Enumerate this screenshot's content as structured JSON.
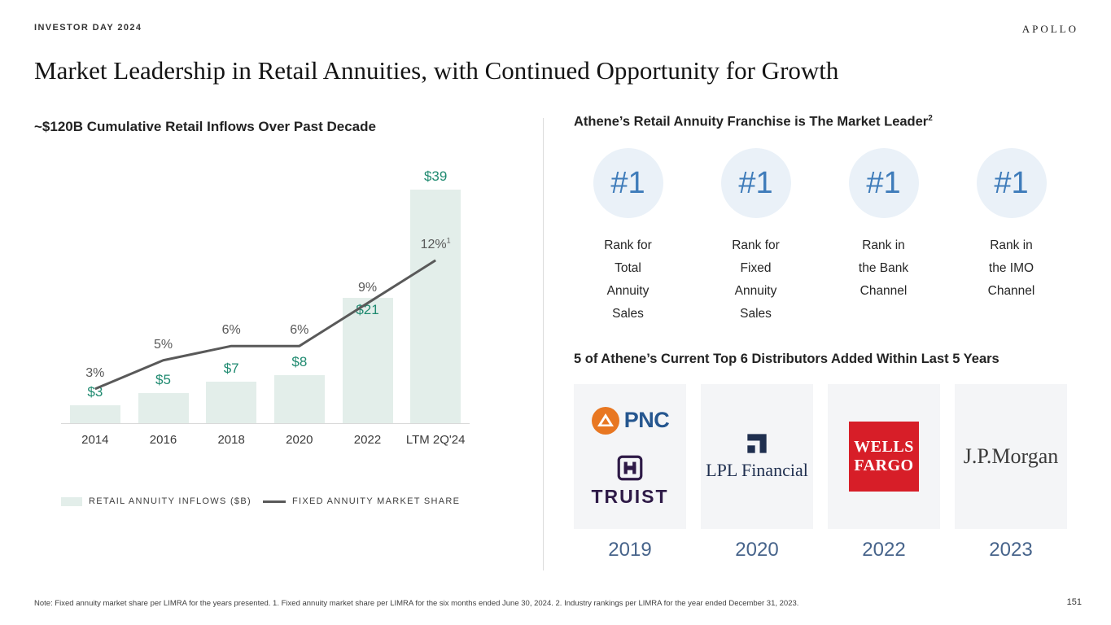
{
  "slide": {
    "eyebrow": "INVESTOR DAY 2024",
    "brand": "APOLLO",
    "title": "Market Leadership in Retail Annuities, with Continued Opportunity for Growth",
    "footnote": "Note: Fixed annuity market share per LIMRA for the years presented. 1. Fixed annuity market share per LIMRA for the six months ended June 30, 2024. 2. Industry rankings per LIMRA for the year ended December 31, 2023.",
    "page_number": "151"
  },
  "chart_data": {
    "type": "bar",
    "title": "~$120B Cumulative Retail Inflows Over Past Decade",
    "categories": [
      "2014",
      "2016",
      "2018",
      "2020",
      "2022",
      "LTM 2Q'24"
    ],
    "series": [
      {
        "name": "RETAIL ANNUITY INFLOWS ($B)",
        "type": "bar",
        "values": [
          3,
          5,
          7,
          8,
          21,
          39
        ],
        "labels": [
          "$3",
          "$5",
          "$7",
          "$8",
          "$21",
          "$39"
        ],
        "color": "#e3eeea",
        "label_color": "#1f8a70"
      },
      {
        "name": "FIXED ANNUITY MARKET SHARE",
        "type": "line",
        "values": [
          3,
          5,
          6,
          6,
          9,
          12
        ],
        "labels": [
          "3%",
          "5%",
          "6%",
          "6%",
          "9%",
          "12%"
        ],
        "last_label_superscript": "1",
        "color": "#595959",
        "label_color": "#595959"
      }
    ],
    "xlabel": "",
    "ylabel": "",
    "bar_axis_range": [
      0,
      40
    ],
    "line_axis_range": [
      0,
      13
    ],
    "gridlines": false,
    "legend_position": "bottom"
  },
  "leader_panel": {
    "heading": "Athene’s Retail Annuity Franchise is The Market Leader",
    "heading_superscript": "2",
    "badges": [
      {
        "rank": "#1",
        "label": "Rank for\nTotal\nAnnuity\nSales"
      },
      {
        "rank": "#1",
        "label": "Rank for\nFixed\nAnnuity\nSales"
      },
      {
        "rank": "#1",
        "label": "Rank in\nthe Bank\nChannel"
      },
      {
        "rank": "#1",
        "label": "Rank in\nthe IMO\nChannel"
      }
    ],
    "badge_colors": {
      "circle_fill": "#eaf1f8",
      "number": "#3f7cba"
    }
  },
  "distributors": {
    "heading": "5 of Athene’s Current Top 6 Distributors Added Within Last 5 Years",
    "tiles": [
      {
        "brands": [
          "PNC",
          "TRUIST"
        ],
        "year": "2019"
      },
      {
        "brands": [
          "LPL Financial"
        ],
        "year": "2020"
      },
      {
        "brands": [
          "WELLS FARGO"
        ],
        "year": "2022"
      },
      {
        "brands": [
          "J.P.Morgan"
        ],
        "year": "2023"
      }
    ],
    "logo_colors": {
      "pnc_orange": "#e87722",
      "pnc_blue": "#25568f",
      "truist_purple": "#2e1a47",
      "lpl_navy": "#1f2f4f",
      "wells_red": "#d71e28",
      "wells_text": "#ffffff",
      "jpm_gray": "#3a3a3a",
      "year_color": "#47648b"
    }
  }
}
